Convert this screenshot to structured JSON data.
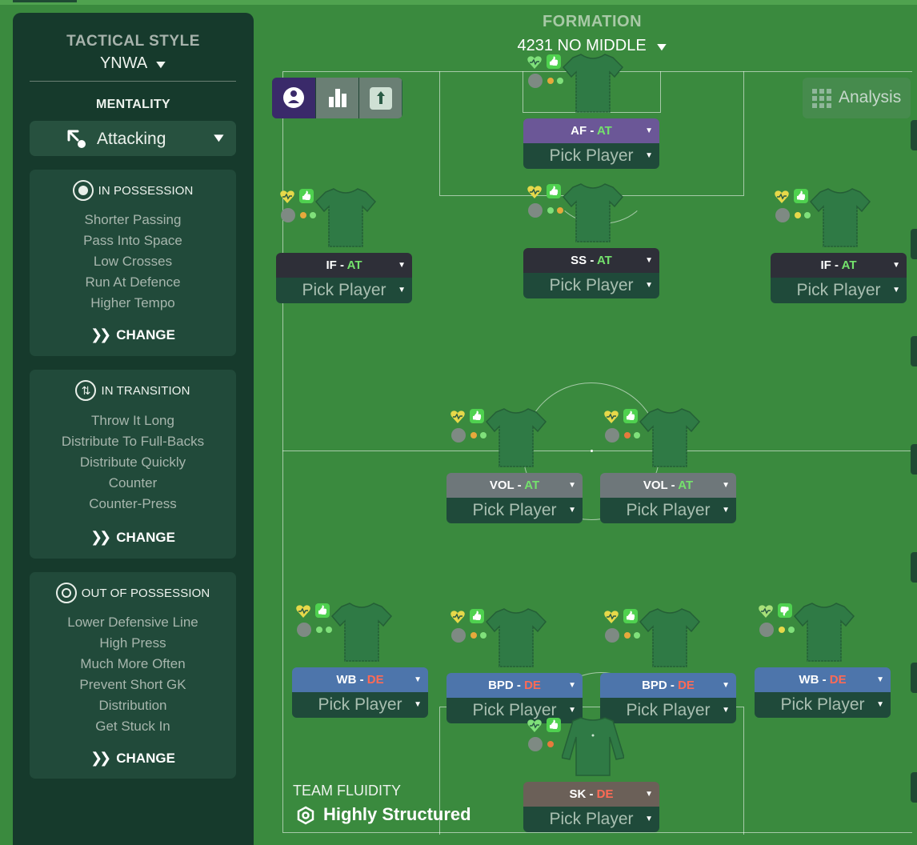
{
  "tactic": {
    "style_label": "TACTICAL STYLE",
    "style_value": "YNWA",
    "mentality_label": "MENTALITY",
    "mentality_value": "Attacking"
  },
  "in_possession": {
    "title": "IN POSSESSION",
    "items": [
      "Shorter Passing",
      "Pass Into Space",
      "Low Crosses",
      "Run At Defence",
      "Higher Tempo"
    ],
    "change_label": "CHANGE"
  },
  "in_transition": {
    "title": "IN TRANSITION",
    "items": [
      "Throw It Long",
      "Distribute To Full-Backs",
      "Distribute Quickly",
      "Counter",
      "Counter-Press"
    ],
    "change_label": "CHANGE"
  },
  "out_of_possession": {
    "title": "OUT OF POSSESSION",
    "items": [
      "Lower Defensive Line",
      "High Press",
      "Much More Often",
      "Prevent Short GK",
      "Distribution",
      "Get Stuck In"
    ],
    "change_label": "CHANGE"
  },
  "formation": {
    "label": "FORMATION",
    "value": "4231 NO MIDDLE"
  },
  "analysis_label": "Analysis",
  "pick_label": "Pick Player",
  "players": [
    {
      "role": "AF",
      "duty": "AT",
      "heart_color": "#7fe07a",
      "thumb": "up",
      "dots": [
        "#e6a93c",
        "#7fe07a"
      ]
    },
    {
      "role": "IF",
      "duty": "AT",
      "heart_color": "#e6d84a",
      "thumb": "up",
      "dots": [
        "#e6a93c",
        "#7fe07a"
      ]
    },
    {
      "role": "SS",
      "duty": "AT",
      "heart_color": "#e6d84a",
      "thumb": "up",
      "dots": [
        "#7fe07a",
        "#e6a93c"
      ]
    },
    {
      "role": "IF",
      "duty": "AT",
      "heart_color": "#e6d84a",
      "thumb": "up",
      "dots": [
        "#e6d84a",
        "#7fe07a"
      ]
    },
    {
      "role": "VOL",
      "duty": "AT",
      "heart_color": "#e6d84a",
      "thumb": "up",
      "dots": [
        "#e6a93c",
        "#7fe07a"
      ]
    },
    {
      "role": "VOL",
      "duty": "AT",
      "heart_color": "#e6d84a",
      "thumb": "up",
      "dots": [
        "#e67a3c",
        "#7fe07a"
      ]
    },
    {
      "role": "WB",
      "duty": "DE",
      "heart_color": "#e6d84a",
      "thumb": "up",
      "dots": [
        "#7fe07a",
        "#7fe07a"
      ]
    },
    {
      "role": "BPD",
      "duty": "DE",
      "heart_color": "#e6d84a",
      "thumb": "up",
      "dots": [
        "#e6a93c",
        "#7fe07a"
      ]
    },
    {
      "role": "BPD",
      "duty": "DE",
      "heart_color": "#e6d84a",
      "thumb": "up",
      "dots": [
        "#e6a93c",
        "#7fe07a"
      ]
    },
    {
      "role": "WB",
      "duty": "DE",
      "heart_color": "#a8e07a",
      "thumb": "down",
      "dots": [
        "#e6d84a",
        "#7fe07a"
      ]
    },
    {
      "role": "SK",
      "duty": "DE",
      "heart_color": "#7fe07a",
      "thumb": "up",
      "dots": [
        "#e67a3c"
      ]
    }
  ],
  "team_fluidity": {
    "label": "TEAM FLUIDITY",
    "value": "Highly Structured"
  }
}
